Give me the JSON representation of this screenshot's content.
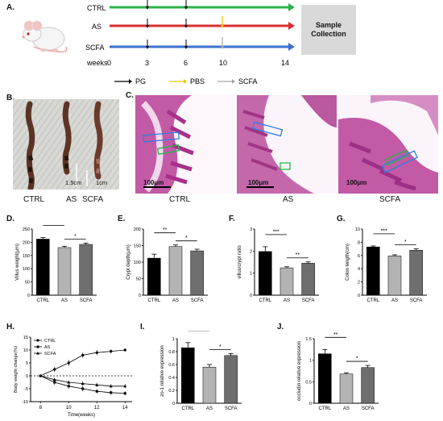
{
  "panels": {
    "A": "A.",
    "B": "B.",
    "C": "C.",
    "D": "D.",
    "E": "E.",
    "F": "F.",
    "G": "G.",
    "H": "H.",
    "I": "I.",
    "J": "J."
  },
  "timeline": {
    "groups": [
      "CTRL",
      "AS",
      "SCFA"
    ],
    "group_colors": [
      "#2db24b",
      "#d9302f",
      "#3d6fcd"
    ],
    "weeks_label": "weeks",
    "ticks": [
      "0",
      "3",
      "6",
      "10",
      "14"
    ],
    "sample_collection": "Sample Collection",
    "legend": [
      {
        "label": "PG",
        "color": "#000000"
      },
      {
        "label": "PBS",
        "color": "#f2c200"
      },
      {
        "label": "SCFA",
        "color": "#a6a6a6"
      }
    ]
  },
  "photo": {
    "labels": [
      "CTRL",
      "AS",
      "SCFA"
    ],
    "scale1": "1.5cm",
    "scale2": "1cm"
  },
  "histology": {
    "scale": "100μm",
    "labels": [
      "CTRL",
      "AS",
      "SCFA"
    ]
  },
  "chart_data": [
    {
      "type": "bar",
      "panel": "D",
      "categories": [
        "CTRL",
        "AS",
        "SCFA"
      ],
      "values": [
        212,
        180,
        192
      ],
      "errors": [
        6,
        5,
        5
      ],
      "ylabel": "Villus weight(μm)",
      "ylim": [
        0,
        250
      ],
      "yticks": [
        0,
        50,
        100,
        150,
        200,
        250
      ],
      "significance": [
        {
          "from": 0,
          "to": 1,
          "label": "**"
        },
        {
          "from": 1,
          "to": 2,
          "label": "*"
        }
      ],
      "colors": [
        "#000000",
        "#b3b3b3",
        "#6e6e6e"
      ]
    },
    {
      "type": "bar",
      "panel": "E",
      "categories": [
        "CTRL",
        "AS",
        "SCFA"
      ],
      "values": [
        112,
        147,
        134
      ],
      "errors": [
        12,
        5,
        5
      ],
      "ylabel": "Crypt depth(μm)",
      "ylim": [
        0,
        200
      ],
      "yticks": [
        0,
        50,
        100,
        150,
        200
      ],
      "significance": [
        {
          "from": 0,
          "to": 1,
          "label": "**"
        },
        {
          "from": 1,
          "to": 2,
          "label": "*"
        }
      ],
      "colors": [
        "#000000",
        "#b3b3b3",
        "#6e6e6e"
      ]
    },
    {
      "type": "bar",
      "panel": "F",
      "categories": [
        "CTRL",
        "AS",
        "SCFA"
      ],
      "values": [
        1.98,
        1.24,
        1.45
      ],
      "errors": [
        0.22,
        0.05,
        0.06
      ],
      "ylabel": "villus/crypt ratio",
      "ylim": [
        0,
        3
      ],
      "yticks": [
        0,
        1,
        2,
        3
      ],
      "significance": [
        {
          "from": 0,
          "to": 1,
          "label": "***"
        },
        {
          "from": 1,
          "to": 2,
          "label": "**"
        }
      ],
      "colors": [
        "#000000",
        "#b3b3b3",
        "#6e6e6e"
      ]
    },
    {
      "type": "bar",
      "panel": "G",
      "categories": [
        "CTRL",
        "AS",
        "SCFA"
      ],
      "values": [
        7.3,
        5.95,
        6.8
      ],
      "errors": [
        0.15,
        0.15,
        0.2
      ],
      "ylabel": "Colon length(cm)",
      "ylim": [
        0,
        10
      ],
      "yticks": [
        0,
        2,
        4,
        6,
        8,
        10
      ],
      "significance": [
        {
          "from": 0,
          "to": 1,
          "label": "***"
        },
        {
          "from": 1,
          "to": 2,
          "label": "*"
        }
      ],
      "colors": [
        "#000000",
        "#b3b3b3",
        "#6e6e6e"
      ]
    },
    {
      "type": "line",
      "panel": "H",
      "x": [
        8,
        9,
        10,
        11,
        12,
        13,
        14
      ],
      "series": [
        {
          "name": "CTRL",
          "values": [
            0,
            2.5,
            5,
            8,
            9,
            9.5,
            10
          ],
          "errors": [
            0.5,
            1,
            1.2,
            1,
            1,
            0.8,
            0.6
          ],
          "marker": "circle"
        },
        {
          "name": "AS",
          "values": [
            0,
            -2.5,
            -4,
            -5,
            -6,
            -6.5,
            -6.8
          ],
          "errors": [
            0.5,
            1,
            1,
            1,
            0.8,
            0.8,
            0.8
          ],
          "marker": "square"
        },
        {
          "name": "SCFA",
          "values": [
            0,
            -1.5,
            -2.5,
            -3,
            -3.5,
            -4,
            -4
          ],
          "errors": [
            0.5,
            0.8,
            0.8,
            0.8,
            0.8,
            0.8,
            0.8
          ],
          "marker": "triangle"
        }
      ],
      "xlabel": "Time(weeks)",
      "ylabel": "Body weight change(%)",
      "xlim": [
        7.3,
        14.5
      ],
      "ylim": [
        -10,
        15
      ],
      "xticks": [
        8,
        10,
        12,
        14
      ],
      "yticks": [
        -10,
        -5,
        0,
        5,
        10,
        15
      ],
      "reference_line": 0
    },
    {
      "type": "bar",
      "panel": "I",
      "categories": [
        "CTRL",
        "AS",
        "SCFA"
      ],
      "values": [
        0.86,
        0.56,
        0.74
      ],
      "errors": [
        0.08,
        0.04,
        0.03
      ],
      "ylabel": "zo-1 relative expression",
      "ylim": [
        0,
        1.0
      ],
      "yticks": [
        0.0,
        0.2,
        0.4,
        0.6,
        0.8,
        1.0
      ],
      "significance": [
        {
          "from": 0,
          "to": 1,
          "label": "**"
        },
        {
          "from": 1,
          "to": 2,
          "label": "*"
        }
      ],
      "colors": [
        "#000000",
        "#b3b3b3",
        "#6e6e6e"
      ]
    },
    {
      "type": "bar",
      "panel": "J",
      "categories": [
        "CTRL",
        "AS",
        "SCFA"
      ],
      "values": [
        1.15,
        0.68,
        0.83
      ],
      "errors": [
        0.1,
        0.03,
        0.05
      ],
      "ylabel": "occludin relative expression",
      "ylim": [
        0,
        1.5
      ],
      "yticks": [
        0.0,
        0.5,
        1.0,
        1.5
      ],
      "significance": [
        {
          "from": 0,
          "to": 1,
          "label": "**"
        },
        {
          "from": 1,
          "to": 2,
          "label": "*"
        }
      ],
      "colors": [
        "#000000",
        "#b3b3b3",
        "#6e6e6e"
      ]
    }
  ]
}
